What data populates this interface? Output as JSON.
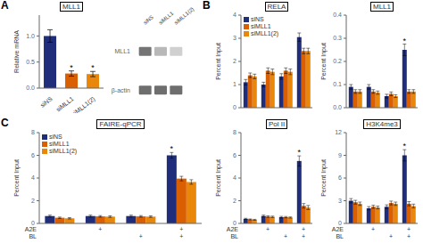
{
  "chart_data": [
    {
      "type": "bar",
      "panel_label": "A",
      "title": "MLL1",
      "categories": [
        "siNS",
        "siMLL1",
        "siMLL1(2)"
      ],
      "values": [
        1.0,
        0.28,
        0.27
      ],
      "errors": [
        0.12,
        0.05,
        0.05
      ],
      "colors": [
        "#1f2d7b",
        "#d95f00",
        "#e8870a"
      ],
      "ylabel": "Relative mRNA",
      "ylim": [
        0,
        1.4
      ],
      "yticks": [
        {
          "value": 0,
          "label": "0.0"
        },
        {
          "value": 0.5,
          "label": "0.5"
        },
        {
          "value": 1.0,
          "label": "1.0"
        }
      ],
      "annotations": [
        {
          "text": "*",
          "category": "siMLL1"
        },
        {
          "text": "*",
          "category": "siMLL1(2)"
        }
      ]
    },
    {
      "type": "heatmap",
      "x": [
        "siNS",
        "siMLL1",
        "siMLL1(2)"
      ],
      "y": [
        "MLL1",
        "β-actin"
      ],
      "values": [
        [
          0.82,
          0.42,
          0.28
        ],
        [
          0.85,
          0.85,
          0.85
        ]
      ],
      "color": "#555555"
    },
    {
      "type": "bar",
      "panel_label": "B",
      "title": "RELA",
      "categories": [
        null,
        null,
        null,
        null
      ],
      "series": [
        {
          "name": "siNS",
          "color": "#1f2d7b",
          "values": [
            1.1,
            1.0,
            1.35,
            3.05
          ],
          "errors": [
            0.12,
            0.1,
            0.12,
            0.18
          ]
        },
        {
          "name": "siMLL1",
          "color": "#d95f00",
          "values": [
            1.4,
            1.6,
            1.6,
            2.45
          ],
          "errors": [
            0.1,
            0.12,
            0.12,
            0.12
          ]
        },
        {
          "name": "siMLL1(2)",
          "color": "#e8870a",
          "values": [
            1.35,
            1.55,
            1.55,
            2.45
          ],
          "errors": [
            0.1,
            0.12,
            0.12,
            0.12
          ]
        }
      ],
      "ylabel": "Percent Input",
      "ylim": [
        0,
        4
      ],
      "yticks": [
        0,
        1,
        2,
        3,
        4
      ],
      "legend": "upper left"
    },
    {
      "type": "bar",
      "title": "MLL1",
      "categories": [
        null,
        null,
        null,
        null
      ],
      "series": [
        {
          "name": "siNS",
          "color": "#1f2d7b",
          "values": [
            0.09,
            0.09,
            0.05,
            0.25
          ],
          "errors": [
            0.01,
            0.01,
            0.008,
            0.025
          ]
        },
        {
          "name": "siMLL1",
          "color": "#d95f00",
          "values": [
            0.07,
            0.07,
            0.06,
            0.07
          ],
          "errors": [
            0.008,
            0.008,
            0.008,
            0.008
          ]
        },
        {
          "name": "siMLL1(2)",
          "color": "#e8870a",
          "values": [
            0.07,
            0.065,
            0.05,
            0.07
          ],
          "errors": [
            0.008,
            0.007,
            0.006,
            0.008
          ]
        }
      ],
      "ylabel": "Percent Input",
      "ylim": [
        0,
        0.4
      ],
      "yticks": [
        {
          "value": 0,
          "label": "0.0"
        },
        {
          "value": 0.1,
          "label": "0.1"
        },
        {
          "value": 0.2,
          "label": "0.2"
        },
        {
          "value": 0.3,
          "label": "0.3"
        },
        {
          "value": 0.4,
          "label": "0.4"
        }
      ],
      "annotations": [
        {
          "text": "*",
          "index": 3,
          "series": "siNS"
        }
      ]
    },
    {
      "type": "bar",
      "panel_label": "C",
      "title": "FAIRE-qPCR",
      "categories": [
        null,
        null,
        null,
        null
      ],
      "series": [
        {
          "name": "siNS",
          "color": "#1f2d7b",
          "values": [
            0.65,
            0.65,
            0.65,
            6.0
          ],
          "errors": [
            0.08,
            0.08,
            0.08,
            0.25
          ]
        },
        {
          "name": "siMLL1",
          "color": "#d95f00",
          "values": [
            0.5,
            0.62,
            0.62,
            3.95
          ],
          "errors": [
            0.06,
            0.07,
            0.07,
            0.2
          ]
        },
        {
          "name": "siMLL1(2)",
          "color": "#e8870a",
          "values": [
            0.45,
            0.6,
            0.6,
            3.65
          ],
          "errors": [
            0.06,
            0.07,
            0.07,
            0.2
          ]
        }
      ],
      "ylabel": "Percent Input",
      "ylim": [
        0,
        8
      ],
      "yticks": [
        0,
        2,
        4,
        6,
        8
      ],
      "legend": "upper left",
      "annotations": [
        {
          "text": "*",
          "index": 3,
          "series": "siNS"
        }
      ],
      "conditions": [
        {
          "name": "A2E",
          "values": [
            null,
            "+",
            null,
            "+"
          ]
        },
        {
          "name": "BL",
          "values": [
            null,
            null,
            "+",
            "+"
          ]
        }
      ]
    },
    {
      "type": "bar",
      "title": "Pol II",
      "categories": [
        null,
        null,
        null,
        null
      ],
      "series": [
        {
          "name": "siNS",
          "color": "#1f2d7b",
          "values": [
            0.4,
            0.65,
            0.55,
            5.5
          ],
          "errors": [
            0.05,
            0.08,
            0.07,
            0.45
          ]
        },
        {
          "name": "siMLL1",
          "color": "#d95f00",
          "values": [
            0.35,
            0.6,
            0.55,
            1.55
          ],
          "errors": [
            0.04,
            0.07,
            0.06,
            0.2
          ]
        },
        {
          "name": "siMLL1(2)",
          "color": "#e8870a",
          "values": [
            0.32,
            0.58,
            0.52,
            1.4
          ],
          "errors": [
            0.04,
            0.06,
            0.05,
            0.18
          ]
        }
      ],
      "ylabel": "Percent Input",
      "ylim": [
        0,
        8
      ],
      "yticks": [
        0,
        2,
        4,
        6,
        8
      ],
      "annotations": [
        {
          "text": "*",
          "index": 3,
          "series": "siNS"
        }
      ],
      "conditions": [
        {
          "name": "A2E",
          "values": [
            null,
            "+",
            null,
            "+"
          ]
        },
        {
          "name": "BL",
          "values": [
            null,
            null,
            "+",
            "+"
          ]
        }
      ]
    },
    {
      "type": "bar",
      "title": "H3K4me3",
      "categories": [
        null,
        null,
        null,
        null
      ],
      "series": [
        {
          "name": "siNS",
          "color": "#1f2d7b",
          "values": [
            3.0,
            2.0,
            2.2,
            9.0
          ],
          "errors": [
            0.28,
            0.22,
            0.25,
            0.75
          ]
        },
        {
          "name": "siMLL1",
          "color": "#d95f00",
          "values": [
            2.8,
            2.2,
            2.7,
            2.6
          ],
          "errors": [
            0.25,
            0.2,
            0.25,
            0.28
          ]
        },
        {
          "name": "siMLL1(2)",
          "color": "#e8870a",
          "values": [
            2.6,
            2.1,
            2.6,
            2.3
          ],
          "errors": [
            0.22,
            0.18,
            0.22,
            0.25
          ]
        }
      ],
      "ylabel": "Percent Input",
      "ylim": [
        0,
        12
      ],
      "yticks": [
        0,
        3,
        6,
        9,
        12
      ],
      "annotations": [
        {
          "text": "*",
          "index": 3,
          "series": "siNS"
        }
      ],
      "conditions": [
        {
          "name": "A2E",
          "values": [
            null,
            "+",
            null,
            "+"
          ]
        },
        {
          "name": "BL",
          "values": [
            null,
            null,
            "+",
            "+"
          ]
        }
      ]
    }
  ]
}
